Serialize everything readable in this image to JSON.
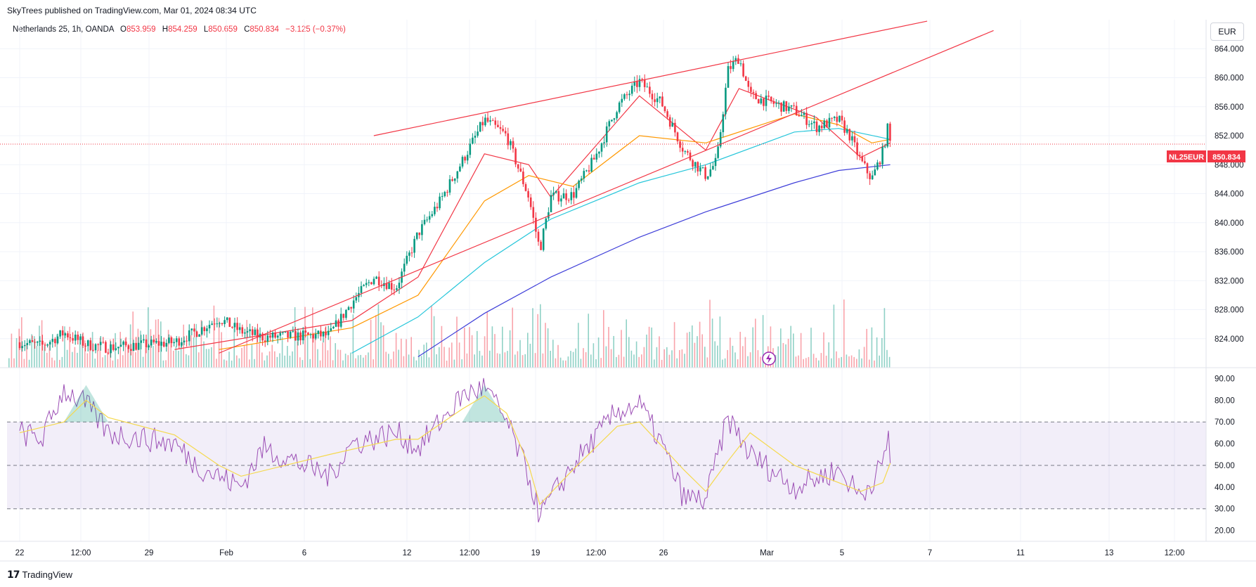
{
  "header": {
    "publish_line": "SkyTrees published on TradingView.com, Mar 01, 2024 08:34 UTC",
    "symbol": "Netherlands 25, 1h, OANDA",
    "ohlc": [
      {
        "label": "O",
        "value": "853.959"
      },
      {
        "label": "H",
        "value": "854.259"
      },
      {
        "label": "L",
        "value": "850.659"
      },
      {
        "label": "C",
        "value": "850.834"
      }
    ],
    "change": "−3.125 (−0.37%)",
    "currency": "EUR"
  },
  "price_tag": {
    "symbol": "NL25EUR",
    "value": "850.834"
  },
  "footer": {
    "brand": "TradingView"
  },
  "colors": {
    "up": "#089981",
    "down": "#f23645",
    "ema20": "#f23645",
    "ema50": "#ff9800",
    "ema100": "#26c6da",
    "ema200": "#3f3fd9",
    "rsi": "#9c4fb5",
    "rsi_ma": "#f5d94e",
    "trendline": "#f23645",
    "rsi_band": "#7e57c2"
  },
  "icons": {
    "alert": "lightning-icon",
    "logo": "tradingview-logo-icon"
  },
  "chart_data": [
    {
      "type": "candlestick",
      "title": "Netherlands 25, 1h, OANDA",
      "ylim": [
        820,
        868
      ],
      "y_ticks": [
        "824.000",
        "828.000",
        "832.000",
        "836.000",
        "840.000",
        "844.000",
        "848.000",
        "852.000",
        "856.000",
        "860.000",
        "864.000"
      ],
      "x_ticks": [
        "22",
        "12:00",
        "29",
        "Feb",
        "6",
        "12",
        "12:00",
        "19",
        "12:00",
        "26",
        "Mar",
        "5",
        "7",
        "11",
        "13",
        "12:00"
      ],
      "last_price": 850.834,
      "price_path": [
        {
          "x": "2024-01-22",
          "y": 823.5
        },
        {
          "x": "2024-01-23",
          "y": 823.0
        },
        {
          "x": "2024-01-24",
          "y": 824.8
        },
        {
          "x": "2024-01-25",
          "y": 823.2
        },
        {
          "x": "2024-01-26",
          "y": 822.8
        },
        {
          "x": "2024-01-29",
          "y": 823.5
        },
        {
          "x": "2024-01-30",
          "y": 825.0
        },
        {
          "x": "2024-01-31",
          "y": 826.8
        },
        {
          "x": "2024-02-01",
          "y": 825.0
        },
        {
          "x": "2024-02-02",
          "y": 824.2
        },
        {
          "x": "2024-02-05",
          "y": 824.5
        },
        {
          "x": "2024-02-06",
          "y": 829.0
        },
        {
          "x": "2024-02-07",
          "y": 832.5
        },
        {
          "x": "2024-02-08",
          "y": 831.0
        },
        {
          "x": "2024-02-09",
          "y": 838.5
        },
        {
          "x": "2024-02-10",
          "y": 843.0
        },
        {
          "x": "2024-02-11",
          "y": 848.5
        },
        {
          "x": "2024-02-12",
          "y": 854.2
        },
        {
          "x": "2024-02-13",
          "y": 852.0
        },
        {
          "x": "2024-02-14",
          "y": 843.5
        },
        {
          "x": "2024-02-14 12:00",
          "y": 836.2
        },
        {
          "x": "2024-02-15",
          "y": 843.6
        },
        {
          "x": "2024-02-16",
          "y": 843.8
        },
        {
          "x": "2024-02-17",
          "y": 849.0
        },
        {
          "x": "2024-02-18",
          "y": 856.0
        },
        {
          "x": "2024-02-19",
          "y": 859.5
        },
        {
          "x": "2024-02-20",
          "y": 856.5
        },
        {
          "x": "2024-02-21",
          "y": 850.0
        },
        {
          "x": "2024-02-21 12:00",
          "y": 848.2
        },
        {
          "x": "2024-02-22",
          "y": 846.5
        },
        {
          "x": "2024-02-22 12:00",
          "y": 848.5
        },
        {
          "x": "2024-02-23",
          "y": 861.0
        },
        {
          "x": "2024-02-23 12:00",
          "y": 862.8
        },
        {
          "x": "2024-02-24",
          "y": 857.5
        },
        {
          "x": "2024-02-26",
          "y": 855.5
        },
        {
          "x": "2024-02-27",
          "y": 853.2
        },
        {
          "x": "2024-02-28",
          "y": 854.2
        },
        {
          "x": "2024-02-28 12:00",
          "y": 852.0
        },
        {
          "x": "2024-02-29",
          "y": 848.5
        },
        {
          "x": "2024-02-29 12:00",
          "y": 846.0
        },
        {
          "x": "2024-03-01",
          "y": 849.8
        },
        {
          "x": "2024-03-01 06:00",
          "y": 853.5
        },
        {
          "x": "2024-03-01 08:00",
          "y": 850.834
        }
      ],
      "moving_averages": [
        {
          "name": "",
          "color": "#f23645",
          "points": [
            {
              "x": "2024-01-29",
              "y": 822.5
            },
            {
              "x": "2024-02-06",
              "y": 826.5
            },
            {
              "x": "2024-02-09",
              "y": 832.5
            },
            {
              "x": "2024-02-12",
              "y": 849.5
            },
            {
              "x": "2024-02-14",
              "y": 848.0
            },
            {
              "x": "2024-02-15",
              "y": 843.5
            },
            {
              "x": "2024-02-19",
              "y": 857.5
            },
            {
              "x": "2024-02-22",
              "y": 850.0
            },
            {
              "x": "2024-02-23 12:00",
              "y": 858.5
            },
            {
              "x": "2024-02-27",
              "y": 854.5
            },
            {
              "x": "2024-02-29",
              "y": 849.0
            },
            {
              "x": "2024-03-01 08:00",
              "y": 851.0
            }
          ]
        },
        {
          "name": "",
          "color": "#ff9800",
          "points": [
            {
              "x": "2024-01-31",
              "y": 822.5
            },
            {
              "x": "2024-02-06",
              "y": 825.5
            },
            {
              "x": "2024-02-09",
              "y": 830.0
            },
            {
              "x": "2024-02-12",
              "y": 843.0
            },
            {
              "x": "2024-02-14",
              "y": 846.5
            },
            {
              "x": "2024-02-16",
              "y": 845.0
            },
            {
              "x": "2024-02-19",
              "y": 852.0
            },
            {
              "x": "2024-02-22",
              "y": 851.0
            },
            {
              "x": "2024-02-26",
              "y": 855.0
            },
            {
              "x": "2024-02-28",
              "y": 853.5
            },
            {
              "x": "2024-02-29 12:00",
              "y": 851.0
            },
            {
              "x": "2024-03-01 08:00",
              "y": 851.5
            }
          ]
        },
        {
          "name": "",
          "color": "#26c6da",
          "points": [
            {
              "x": "2024-02-06",
              "y": 822.0
            },
            {
              "x": "2024-02-09",
              "y": 827.0
            },
            {
              "x": "2024-02-12",
              "y": 834.5
            },
            {
              "x": "2024-02-15",
              "y": 840.5
            },
            {
              "x": "2024-02-19",
              "y": 845.5
            },
            {
              "x": "2024-02-22",
              "y": 848.0
            },
            {
              "x": "2024-02-26",
              "y": 852.5
            },
            {
              "x": "2024-02-28",
              "y": 853.0
            },
            {
              "x": "2024-03-01 08:00",
              "y": 851.5
            }
          ]
        },
        {
          "name": "",
          "color": "#3f3fd9",
          "points": [
            {
              "x": "2024-02-09",
              "y": 821.5
            },
            {
              "x": "2024-02-12",
              "y": 827.5
            },
            {
              "x": "2024-02-15",
              "y": 832.5
            },
            {
              "x": "2024-02-19",
              "y": 838.0
            },
            {
              "x": "2024-02-22",
              "y": 841.5
            },
            {
              "x": "2024-02-26",
              "y": 845.5
            },
            {
              "x": "2024-02-28",
              "y": 847.2
            },
            {
              "x": "2024-03-01 08:00",
              "y": 848.0
            }
          ]
        }
      ],
      "trendlines": [
        {
          "from": {
            "x": "2024-02-07",
            "y": 852.0
          },
          "to": {
            "x": "2024-03-03",
            "y": 867.8
          }
        },
        {
          "from": {
            "x": "2024-01-31",
            "y": 822.0
          },
          "to": {
            "x": "2024-03-06",
            "y": 866.5
          }
        }
      ]
    },
    {
      "type": "line",
      "title": "",
      "ylim": [
        15,
        95
      ],
      "y_ticks": [
        "20.00",
        "30.00",
        "40.00",
        "50.00",
        "60.00",
        "70.00",
        "80.00",
        "90.00"
      ],
      "bands": [
        30,
        50,
        70
      ],
      "series": [
        {
          "name": "",
          "points": [
            {
              "x": "2024-01-22",
              "y": 65
            },
            {
              "x": "2024-01-23",
              "y": 62
            },
            {
              "x": "2024-01-24",
              "y": 85
            },
            {
              "x": "2024-01-25",
              "y": 78
            },
            {
              "x": "2024-01-26",
              "y": 65
            },
            {
              "x": "2024-01-29",
              "y": 60
            },
            {
              "x": "2024-01-30",
              "y": 50
            },
            {
              "x": "2024-02-01",
              "y": 40
            },
            {
              "x": "2024-02-02",
              "y": 58
            },
            {
              "x": "2024-02-05",
              "y": 45
            },
            {
              "x": "2024-02-06",
              "y": 60
            },
            {
              "x": "2024-02-08",
              "y": 65
            },
            {
              "x": "2024-02-09",
              "y": 58
            },
            {
              "x": "2024-02-11",
              "y": 82
            },
            {
              "x": "2024-02-12",
              "y": 86
            },
            {
              "x": "2024-02-13",
              "y": 70
            },
            {
              "x": "2024-02-14",
              "y": 45
            },
            {
              "x": "2024-02-14 12:00",
              "y": 27
            },
            {
              "x": "2024-02-16",
              "y": 50
            },
            {
              "x": "2024-02-18",
              "y": 75
            },
            {
              "x": "2024-02-19",
              "y": 78
            },
            {
              "x": "2024-02-20",
              "y": 60
            },
            {
              "x": "2024-02-21",
              "y": 35
            },
            {
              "x": "2024-02-22",
              "y": 34
            },
            {
              "x": "2024-02-23",
              "y": 72
            },
            {
              "x": "2024-02-24",
              "y": 55
            },
            {
              "x": "2024-02-26",
              "y": 40
            },
            {
              "x": "2024-02-27",
              "y": 44
            },
            {
              "x": "2024-02-28",
              "y": 48
            },
            {
              "x": "2024-02-29",
              "y": 36
            },
            {
              "x": "2024-03-01",
              "y": 50
            },
            {
              "x": "2024-03-01 06:00",
              "y": 64
            },
            {
              "x": "2024-03-01 08:00",
              "y": 51
            }
          ]
        },
        {
          "name": "",
          "points": [
            {
              "x": "2024-01-22",
              "y": 65
            },
            {
              "x": "2024-01-24",
              "y": 70
            },
            {
              "x": "2024-01-25",
              "y": 80
            },
            {
              "x": "2024-01-26",
              "y": 72
            },
            {
              "x": "2024-01-29",
              "y": 64
            },
            {
              "x": "2024-01-31",
              "y": 50
            },
            {
              "x": "2024-02-01",
              "y": 45
            },
            {
              "x": "2024-02-05",
              "y": 55
            },
            {
              "x": "2024-02-08",
              "y": 62
            },
            {
              "x": "2024-02-09",
              "y": 62
            },
            {
              "x": "2024-02-11",
              "y": 76
            },
            {
              "x": "2024-02-12",
              "y": 82
            },
            {
              "x": "2024-02-13",
              "y": 74
            },
            {
              "x": "2024-02-14",
              "y": 50
            },
            {
              "x": "2024-02-14 12:00",
              "y": 32
            },
            {
              "x": "2024-02-16",
              "y": 48
            },
            {
              "x": "2024-02-18",
              "y": 68
            },
            {
              "x": "2024-02-19",
              "y": 70
            },
            {
              "x": "2024-02-21",
              "y": 48
            },
            {
              "x": "2024-02-22",
              "y": 38
            },
            {
              "x": "2024-02-23",
              "y": 52
            },
            {
              "x": "2024-02-24",
              "y": 65
            },
            {
              "x": "2024-02-26",
              "y": 50
            },
            {
              "x": "2024-02-28",
              "y": 42
            },
            {
              "x": "2024-02-29",
              "y": 38
            },
            {
              "x": "2024-03-01",
              "y": 42
            },
            {
              "x": "2024-03-01 08:00",
              "y": 51
            }
          ]
        }
      ]
    }
  ]
}
